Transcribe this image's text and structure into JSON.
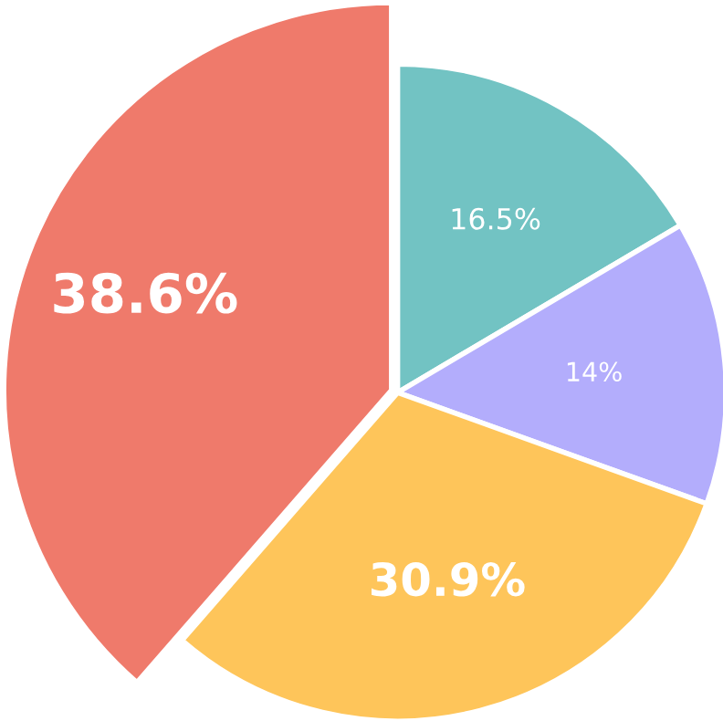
{
  "chart_data": {
    "type": "pie",
    "categories": [
      null,
      null,
      null,
      null
    ],
    "values": [
      16.5,
      14,
      30.9,
      38.6
    ],
    "value_labels": [
      "16.5%",
      "14%",
      "30.9%",
      "38.6%"
    ],
    "colors": [
      "#72c3c3",
      "#b3adfc",
      "#fec55a",
      "#ef7a6b"
    ],
    "legend": false
  }
}
